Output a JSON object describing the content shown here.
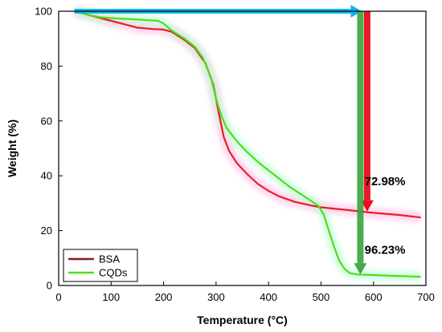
{
  "chart_data": {
    "type": "line",
    "xlabel": "Temperature (°C)",
    "ylabel": "Weight (%)",
    "xlim": [
      0,
      700
    ],
    "ylim": [
      0,
      100
    ],
    "x_ticks": [
      0,
      100,
      200,
      300,
      400,
      500,
      600,
      700
    ],
    "y_ticks": [
      0,
      20,
      40,
      60,
      80,
      100
    ],
    "grid": false,
    "legend_position": "bottom-left",
    "series": [
      {
        "name": "BSA",
        "color": "#ee1c24",
        "legend_color": "#8b1a1a",
        "points": [
          [
            30,
            100
          ],
          [
            50,
            99
          ],
          [
            80,
            97.5
          ],
          [
            100,
            96.5
          ],
          [
            130,
            95
          ],
          [
            150,
            94
          ],
          [
            180,
            93.5
          ],
          [
            200,
            93.3
          ],
          [
            215,
            92.5
          ],
          [
            240,
            89.5
          ],
          [
            260,
            86.5
          ],
          [
            280,
            81
          ],
          [
            295,
            73
          ],
          [
            305,
            63
          ],
          [
            315,
            54
          ],
          [
            325,
            49
          ],
          [
            340,
            44.5
          ],
          [
            360,
            40.5
          ],
          [
            380,
            37
          ],
          [
            400,
            34.5
          ],
          [
            420,
            32.5
          ],
          [
            450,
            30.5
          ],
          [
            480,
            29.2
          ],
          [
            500,
            28.5
          ],
          [
            550,
            27.5
          ],
          [
            600,
            26.5
          ],
          [
            650,
            25.7
          ],
          [
            690,
            24.8
          ]
        ]
      },
      {
        "name": "CQDs",
        "color": "#4dde1f",
        "legend_color": "#4dde1f",
        "points": [
          [
            30,
            100
          ],
          [
            60,
            98.5
          ],
          [
            80,
            97.8
          ],
          [
            100,
            97.5
          ],
          [
            150,
            97
          ],
          [
            190,
            96.5
          ],
          [
            200,
            95.5
          ],
          [
            215,
            93
          ],
          [
            240,
            90
          ],
          [
            260,
            87
          ],
          [
            275,
            83
          ],
          [
            290,
            76
          ],
          [
            300,
            68
          ],
          [
            310,
            62
          ],
          [
            320,
            57.5
          ],
          [
            340,
            52.5
          ],
          [
            360,
            48.5
          ],
          [
            380,
            45
          ],
          [
            400,
            42
          ],
          [
            420,
            39
          ],
          [
            440,
            36
          ],
          [
            460,
            33.5
          ],
          [
            480,
            31
          ],
          [
            495,
            29
          ],
          [
            505,
            26
          ],
          [
            515,
            20
          ],
          [
            525,
            14
          ],
          [
            535,
            9
          ],
          [
            545,
            6
          ],
          [
            555,
            4.5
          ],
          [
            570,
            4
          ],
          [
            600,
            3.8
          ],
          [
            640,
            3.5
          ],
          [
            690,
            3.2
          ]
        ]
      }
    ],
    "annotations": [
      {
        "text": "72.98%",
        "x": 583,
        "y": 38
      },
      {
        "text": "96.23%",
        "x": 583,
        "y": 13
      }
    ],
    "arrows": [
      {
        "color": "#00b0f0",
        "from": [
          30,
          100
        ],
        "to": [
          578,
          100
        ]
      },
      {
        "color": "#e60012",
        "from": [
          588,
          100
        ],
        "to": [
          588,
          27
        ]
      },
      {
        "color": "#3da33d",
        "from": [
          575,
          100
        ],
        "to": [
          575,
          4
        ]
      }
    ]
  }
}
